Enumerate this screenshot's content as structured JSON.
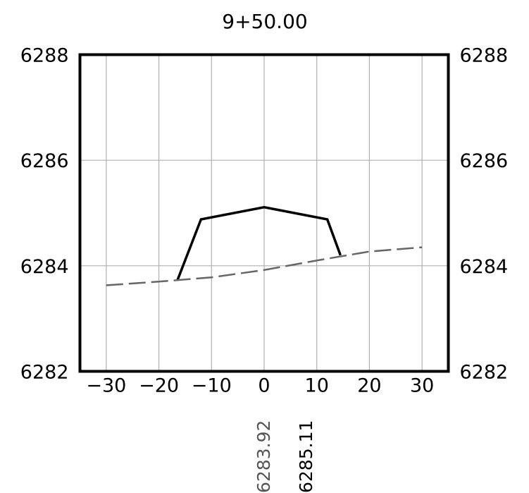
{
  "chart_data": {
    "type": "line",
    "title": "9+50.00",
    "xlim": [
      -35,
      35
    ],
    "ylim": [
      6282,
      6288
    ],
    "x_ticks": [
      "−30",
      "−20",
      "−10",
      "0",
      "10",
      "20",
      "30"
    ],
    "x_tick_values": [
      -30,
      -20,
      -10,
      0,
      10,
      20,
      30
    ],
    "y_ticks": [
      "6282",
      "6284",
      "6286",
      "6288"
    ],
    "y_tick_values": [
      6282,
      6284,
      6286,
      6288
    ],
    "grid": true,
    "series": [
      {
        "style": "solid",
        "color": "#000000",
        "x": [
          -16.5,
          -12,
          0,
          12,
          14.5
        ],
        "y": [
          6283.72,
          6284.88,
          6285.11,
          6284.88,
          6284.2
        ]
      },
      {
        "style": "dashed",
        "color": "#666666",
        "x": [
          -30,
          -20,
          -10,
          0,
          10,
          20,
          30
        ],
        "y": [
          6283.63,
          6283.7,
          6283.78,
          6283.92,
          6284.1,
          6284.27,
          6284.35
        ]
      }
    ],
    "bottom_labels": [
      {
        "x": 0,
        "text": "6283.92",
        "color": "#555555"
      },
      {
        "x": 8,
        "text": "6285.11",
        "color": "#000000"
      }
    ]
  }
}
